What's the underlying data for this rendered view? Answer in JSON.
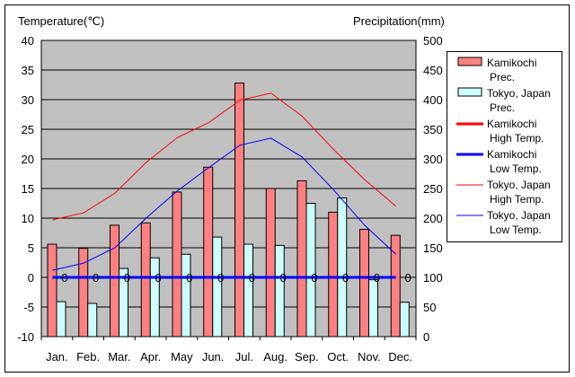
{
  "chart_data": {
    "type": "bar",
    "title": "",
    "ylabel": "Temperature(℃)",
    "y2label": "Precipitation(mm)",
    "ylim": [
      -10,
      40
    ],
    "y2lim": [
      0,
      500
    ],
    "yticks": [
      -10,
      -5,
      0,
      5,
      10,
      15,
      20,
      25,
      30,
      35,
      40
    ],
    "y2ticks": [
      0,
      50,
      100,
      150,
      200,
      250,
      300,
      350,
      400,
      450,
      500
    ],
    "categories": [
      "Jan.",
      "Feb.",
      "Mar.",
      "Apr.",
      "May",
      "Jun.",
      "Jul.",
      "Aug.",
      "Sep.",
      "Oct.",
      "Nov.",
      "Dec."
    ],
    "grid": true,
    "legend_position": "right",
    "point_marker_label": "0",
    "series": [
      {
        "name": "Kamikochi Prec.",
        "legend": [
          "Kamikochi",
          "Prec."
        ],
        "kind": "bar",
        "axis": "right",
        "color": "#ff8080",
        "values": [
          156,
          149,
          188,
          192,
          244,
          286,
          428,
          250,
          263,
          210,
          181,
          171
        ]
      },
      {
        "name": "Tokyo, Japan Prec.",
        "legend": [
          "Tokyo, Japan",
          "Prec."
        ],
        "kind": "bar",
        "axis": "right",
        "color": "#ccffff",
        "values": [
          59,
          56,
          115,
          133,
          139,
          168,
          156,
          154,
          225,
          234,
          96,
          58
        ]
      },
      {
        "name": "Kamikochi High Temp.",
        "legend": [
          "Kamikochi",
          "High Temp."
        ],
        "kind": "line",
        "axis": "left",
        "color": "#ff0000",
        "width": 3,
        "values": [
          0,
          0,
          0,
          0,
          0,
          0,
          0,
          0,
          0,
          0,
          0,
          0
        ]
      },
      {
        "name": "Kamikochi Low Temp.",
        "legend": [
          "Kamikochi",
          "Low Temp."
        ],
        "kind": "line",
        "axis": "left",
        "color": "#0000ff",
        "width": 3,
        "values": [
          0,
          0,
          0,
          0,
          0,
          0,
          0,
          0,
          0,
          0,
          0,
          0
        ]
      },
      {
        "name": "Tokyo, Japan High Temp.",
        "legend": [
          "Tokyo, Japan",
          "High Temp."
        ],
        "kind": "line",
        "axis": "left",
        "color": "#ff0000",
        "width": 1,
        "values": [
          9.7,
          10.9,
          14.2,
          19.4,
          23.6,
          26.1,
          29.9,
          31.1,
          27.2,
          21.6,
          16.5,
          12.0
        ]
      },
      {
        "name": "Tokyo, Japan Low Temp.",
        "legend": [
          "Tokyo, Japan",
          "Low Temp."
        ],
        "kind": "line",
        "axis": "left",
        "color": "#0000ff",
        "width": 1,
        "values": [
          1.2,
          2.4,
          5.0,
          10.0,
          14.6,
          18.5,
          22.3,
          23.5,
          20.3,
          14.8,
          8.8,
          3.9
        ]
      }
    ]
  }
}
